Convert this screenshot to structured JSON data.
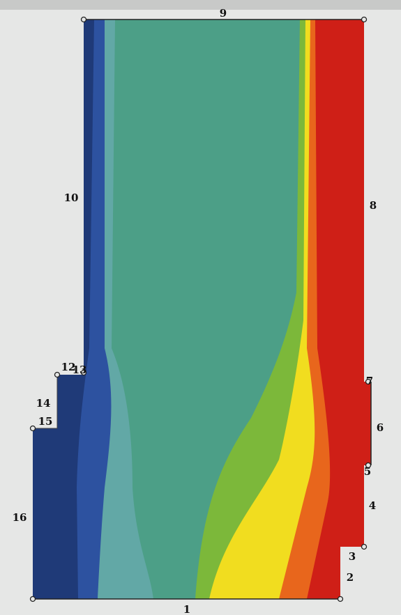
{
  "boundary_labels": {
    "top": "9",
    "left_upper": "10",
    "corner_a": "12",
    "corner_b": "13",
    "left_step": "14",
    "left_corner": "15",
    "left_lower": "16",
    "bottom": "1",
    "right_bottom": "2",
    "right_step": "3",
    "right_lower": "4",
    "right_node": "5",
    "right_middle": "6",
    "right_upper_node": "7",
    "right_upper": "8"
  }
}
